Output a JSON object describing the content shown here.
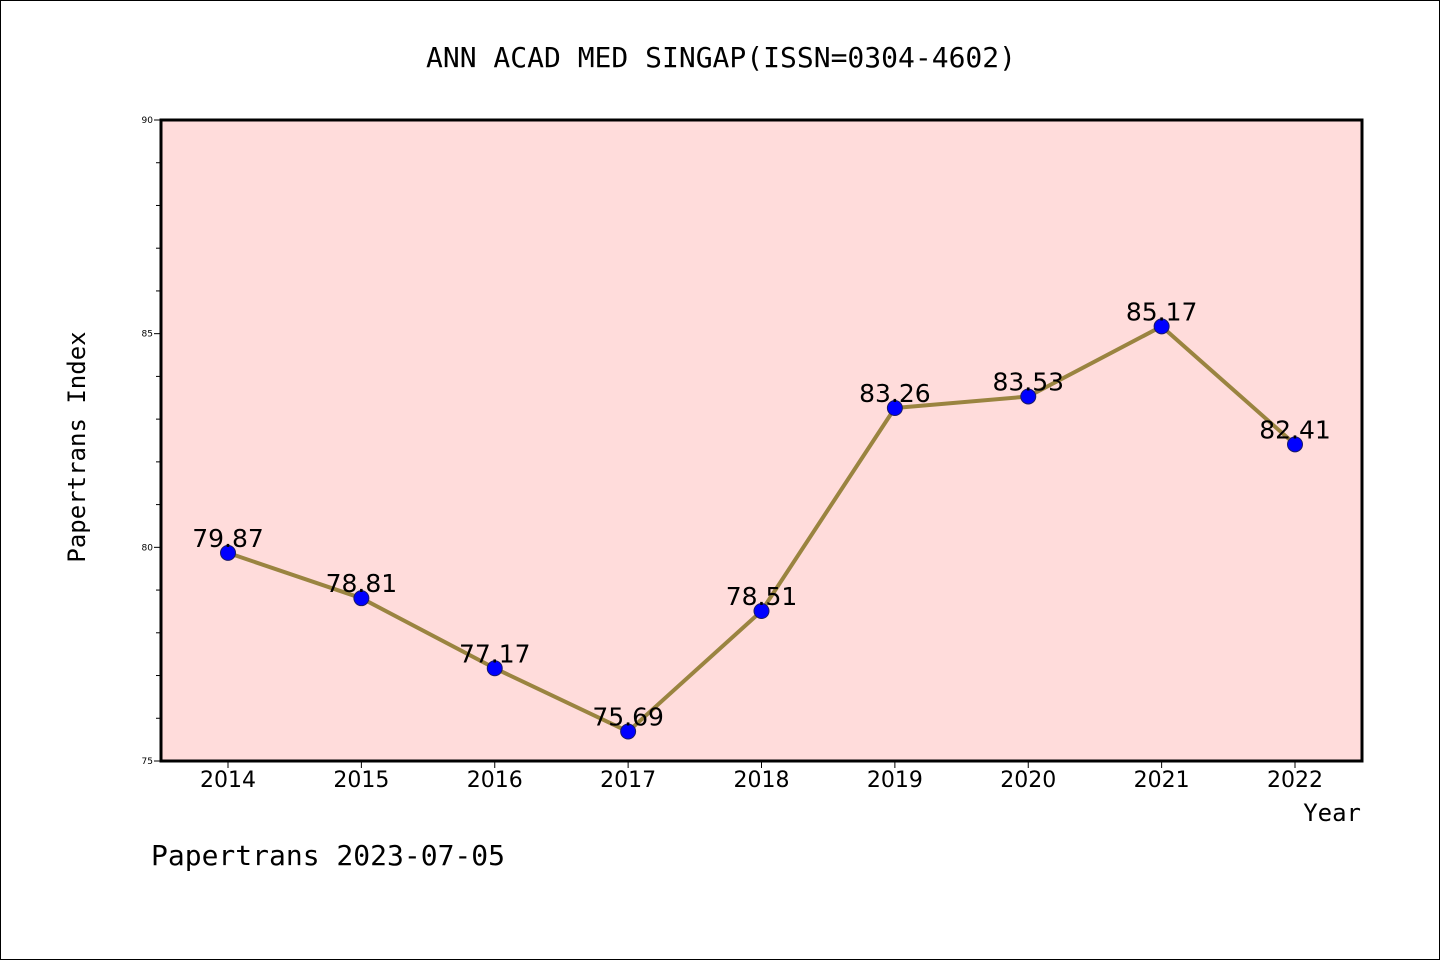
{
  "chart_data": {
    "type": "line",
    "title": "ANN ACAD MED SINGAP(ISSN=0304-4602)",
    "xlabel": "Year",
    "ylabel": "Papertrans Index",
    "categories": [
      "2014",
      "2015",
      "2016",
      "2017",
      "2018",
      "2019",
      "2020",
      "2021",
      "2022"
    ],
    "series": [
      {
        "values": [
          79.87,
          78.81,
          77.17,
          75.69,
          78.51,
          83.26,
          83.53,
          85.17,
          82.41
        ],
        "data_labels": [
          "79.87",
          "78.81",
          "77.17",
          "75.69",
          "78.51",
          "83.26",
          "83.53",
          "85.17",
          "82.41"
        ]
      }
    ],
    "ylim": [
      75,
      90
    ],
    "y_ticks": [
      "75",
      "80",
      "85",
      "90"
    ],
    "y_tick_values": [
      75,
      80,
      85,
      90
    ],
    "y_minor_step": 1,
    "grid": false,
    "colors": {
      "plot_background": "#ffdcdb",
      "line": "#9a8440",
      "marker": "#0000ff",
      "frame": "#000000"
    },
    "footer": "Papertrans 2023-07-05"
  }
}
